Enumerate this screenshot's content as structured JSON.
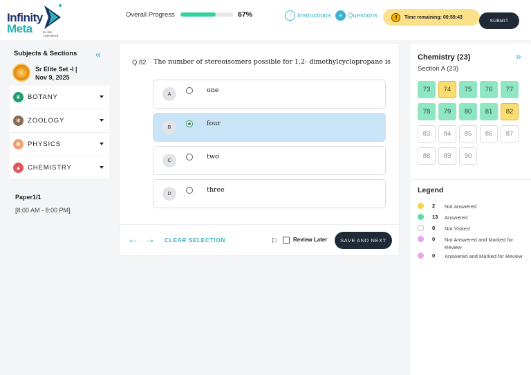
{
  "brand": {
    "line1": "Infinity",
    "line2": "Meta",
    "tagline": "BY SRI CHAITANYA"
  },
  "header": {
    "progress_label": "Overall Progress",
    "progress_value": 0.67,
    "progress_pct": "67%",
    "instructions_label": "Instructions",
    "questions_label": "Questions",
    "timer_text": "Time remaining: 00:59:43",
    "submit_label": "SUBMIT"
  },
  "sidebar": {
    "title": "Subjects & Sections",
    "exam_line1": "Sr Elite Set -I |",
    "exam_line2": "Nov 9, 2025",
    "subjects": [
      {
        "label": "BOTANY",
        "icon": "leaf-icon",
        "color": "#1e9e6a"
      },
      {
        "label": "ZOOLOGY",
        "icon": "paw-icon",
        "color": "#8b6a4f"
      },
      {
        "label": "PHYSICS",
        "icon": "atom-icon",
        "color": "#f59e6b"
      },
      {
        "label": "CHEMISTRY",
        "icon": "flask-icon",
        "color": "#e0565b"
      }
    ],
    "paper": "Paper1/1",
    "paper_time": "[8:00 AM - 8:00 PM]"
  },
  "question": {
    "number": "Q.82",
    "text": "The number of stereoisomers possible for 1,2- dimethylcyclopropane is",
    "options": [
      {
        "letter": "A",
        "text": "one",
        "selected": false
      },
      {
        "letter": "B",
        "text": "four",
        "selected": true
      },
      {
        "letter": "C",
        "text": "two",
        "selected": false
      },
      {
        "letter": "D",
        "text": "three",
        "selected": false
      }
    ],
    "clear_label": "CLEAR SELECTION",
    "review_label": "Review Later",
    "save_label": "SAVE AND NEXT"
  },
  "panel": {
    "title": "Chemistry (23)",
    "section": "Section A (23)",
    "questions": [
      {
        "n": "73",
        "status": "answered"
      },
      {
        "n": "74",
        "status": "not_answered"
      },
      {
        "n": "75",
        "status": "answered"
      },
      {
        "n": "76",
        "status": "answered"
      },
      {
        "n": "77",
        "status": "answered"
      },
      {
        "n": "78",
        "status": "answered"
      },
      {
        "n": "79",
        "status": "answered"
      },
      {
        "n": "80",
        "status": "answered"
      },
      {
        "n": "81",
        "status": "answered"
      },
      {
        "n": "82",
        "status": "not_answered"
      },
      {
        "n": "83",
        "status": "not_visited"
      },
      {
        "n": "84",
        "status": "not_visited"
      },
      {
        "n": "85",
        "status": "not_visited"
      },
      {
        "n": "86",
        "status": "not_visited"
      },
      {
        "n": "87",
        "status": "not_visited"
      },
      {
        "n": "88",
        "status": "not_visited"
      },
      {
        "n": "89",
        "status": "not_visited"
      },
      {
        "n": "90",
        "status": "not_visited"
      }
    ],
    "legend_title": "Legend",
    "legend": [
      {
        "count": "2",
        "label": "Not answered",
        "color": "#f5d445"
      },
      {
        "count": "13",
        "label": "Answered",
        "color": "#5fd9b0"
      },
      {
        "count": "8",
        "label": "Not Visited",
        "color": "#ffffff"
      },
      {
        "count": "0",
        "label": "Not Answered and Marked for Review",
        "color": "#e8a4ee"
      },
      {
        "count": "0",
        "label": "Answered and Marked for Review",
        "color": "#e8a4ee"
      }
    ]
  }
}
